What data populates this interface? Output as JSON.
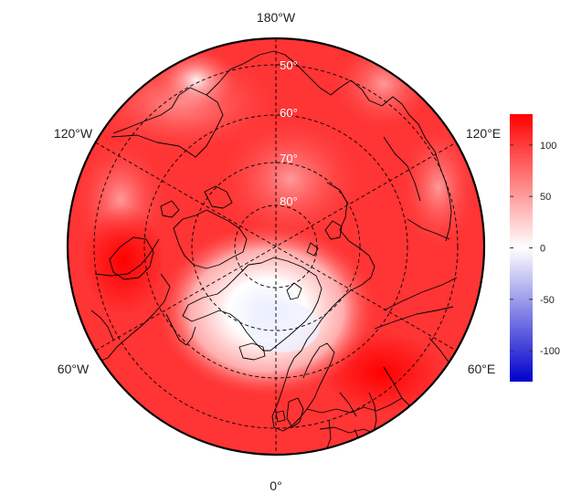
{
  "map": {
    "projection": "north-polar-stereographic",
    "longitude_labels": [
      {
        "id": "lon-180w",
        "text": "180°W",
        "lon": 180
      },
      {
        "id": "lon-120e",
        "text": "120°E",
        "lon": 120
      },
      {
        "id": "lon-60e",
        "text": "60°E",
        "lon": 60
      },
      {
        "id": "lon-0",
        "text": "0°",
        "lon": 0
      },
      {
        "id": "lon-60w",
        "text": "60°W",
        "lon": -60
      },
      {
        "id": "lon-120w",
        "text": "120°W",
        "lon": -120
      }
    ],
    "latitude_labels": [
      {
        "id": "lat-50",
        "text": "50°",
        "lat": 50
      },
      {
        "id": "lat-60",
        "text": "60°",
        "lat": 60
      },
      {
        "id": "lat-70",
        "text": "70°",
        "lat": 70
      },
      {
        "id": "lat-80",
        "text": "80°",
        "lat": 80
      }
    ],
    "field_color_scale": {
      "min": -130,
      "max": 130,
      "colors": [
        "#0000cc",
        "#ffffff",
        "#ff0000"
      ]
    }
  },
  "colorbar": {
    "ticks": [
      {
        "value": 100,
        "label": "100"
      },
      {
        "value": 50,
        "label": "50"
      },
      {
        "value": 0,
        "label": "0"
      },
      {
        "value": -50,
        "label": "-50"
      },
      {
        "value": -100,
        "label": "-100"
      }
    ],
    "range": [
      -130,
      130
    ]
  }
}
